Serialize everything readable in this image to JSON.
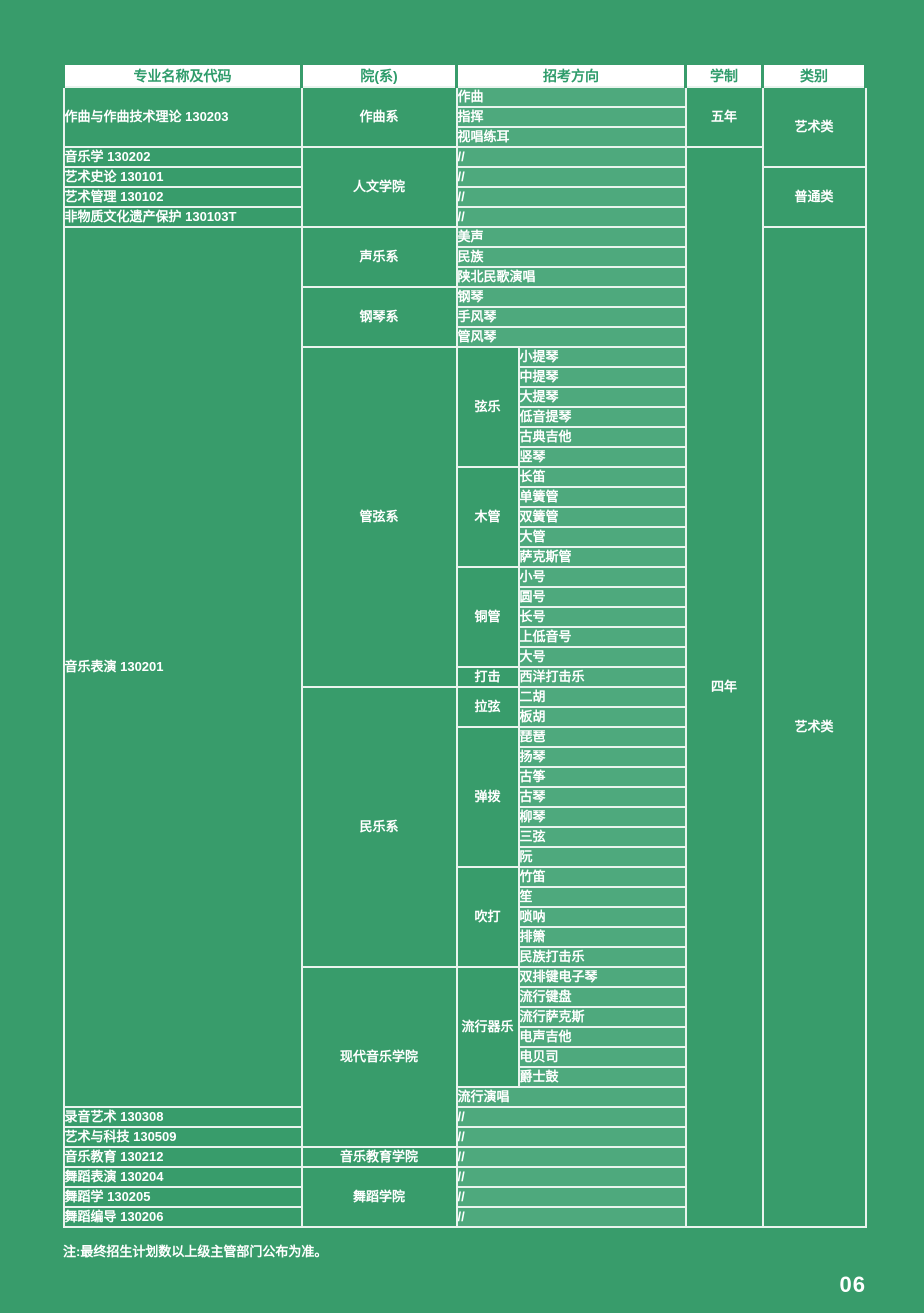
{
  "page": {
    "note": "注:最终招生计划数以上级主管部门公布为准。",
    "page_number": "06",
    "colors": {
      "page_background": "#389C6B",
      "direction_cell_fill": "#4EA97D",
      "grid_line": "#E9F4EE",
      "header_background": "#FFFFFF",
      "header_text": "#2F9C6B",
      "cell_text": "#FFFFFF"
    }
  },
  "table": {
    "headers": [
      "专业名称及代码",
      "院(系)",
      "招考方向",
      "学制",
      "类别"
    ],
    "rows": [
      [
        {
          "t": "作曲与作曲技术理论 130203",
          "k": "m",
          "rs": 3
        },
        {
          "t": "作曲系",
          "k": "d",
          "rs": 3
        },
        {
          "t": "作曲",
          "k": "f",
          "cs": 2
        },
        {
          "t": "五年",
          "k": "y",
          "rs": 3
        },
        {
          "t": "艺术类",
          "k": "c",
          "rs": 4
        }
      ],
      [
        {
          "t": "指挥",
          "k": "f",
          "cs": 2
        }
      ],
      [
        {
          "t": "视唱练耳",
          "k": "f",
          "cs": 2
        }
      ],
      [
        {
          "t": "音乐学 130202",
          "k": "m"
        },
        {
          "t": "人文学院",
          "k": "d",
          "rs": 4
        },
        {
          "t": "//",
          "k": "f",
          "cs": 2
        },
        {
          "t": "四年",
          "k": "y",
          "rs": 54
        }
      ],
      [
        {
          "t": "艺术史论 130101",
          "k": "m"
        },
        {
          "t": "//",
          "k": "f",
          "cs": 2
        },
        {
          "t": "普通类",
          "k": "c",
          "rs": 3
        }
      ],
      [
        {
          "t": "艺术管理 130102",
          "k": "m"
        },
        {
          "t": "//",
          "k": "f",
          "cs": 2
        }
      ],
      [
        {
          "t": "非物质文化遗产保护 130103T",
          "k": "m"
        },
        {
          "t": "//",
          "k": "f",
          "cs": 2
        }
      ],
      [
        {
          "t": "音乐表演 130201",
          "k": "m",
          "rs": 44
        },
        {
          "t": "声乐系",
          "k": "d",
          "rs": 3
        },
        {
          "t": "美声",
          "k": "f",
          "cs": 2
        },
        {
          "t": "艺术类",
          "k": "c",
          "rs": 50
        }
      ],
      [
        {
          "t": "民族",
          "k": "f",
          "cs": 2
        }
      ],
      [
        {
          "t": "陕北民歌演唱",
          "k": "f",
          "cs": 2
        }
      ],
      [
        {
          "t": "钢琴系",
          "k": "d",
          "rs": 3
        },
        {
          "t": "钢琴",
          "k": "f",
          "cs": 2
        }
      ],
      [
        {
          "t": "手风琴",
          "k": "f",
          "cs": 2
        }
      ],
      [
        {
          "t": "管风琴",
          "k": "f",
          "cs": 2
        }
      ],
      [
        {
          "t": "管弦系",
          "k": "d",
          "rs": 17
        },
        {
          "t": "弦乐",
          "k": "g",
          "rs": 6
        },
        {
          "t": "小提琴",
          "k": "i"
        }
      ],
      [
        {
          "t": "中提琴",
          "k": "i"
        }
      ],
      [
        {
          "t": "大提琴",
          "k": "i"
        }
      ],
      [
        {
          "t": "低音提琴",
          "k": "i"
        }
      ],
      [
        {
          "t": "古典吉他",
          "k": "i"
        }
      ],
      [
        {
          "t": "竖琴",
          "k": "i"
        }
      ],
      [
        {
          "t": "木管",
          "k": "g",
          "rs": 5
        },
        {
          "t": "长笛",
          "k": "i"
        }
      ],
      [
        {
          "t": "单簧管",
          "k": "i"
        }
      ],
      [
        {
          "t": "双簧管",
          "k": "i"
        }
      ],
      [
        {
          "t": "大管",
          "k": "i"
        }
      ],
      [
        {
          "t": "萨克斯管",
          "k": "i"
        }
      ],
      [
        {
          "t": "铜管",
          "k": "g",
          "rs": 5
        },
        {
          "t": "小号",
          "k": "i"
        }
      ],
      [
        {
          "t": "圆号",
          "k": "i"
        }
      ],
      [
        {
          "t": "长号",
          "k": "i"
        }
      ],
      [
        {
          "t": "上低音号",
          "k": "i"
        }
      ],
      [
        {
          "t": "大号",
          "k": "i"
        }
      ],
      [
        {
          "t": "打击",
          "k": "g"
        },
        {
          "t": "西洋打击乐",
          "k": "i"
        }
      ],
      [
        {
          "t": "民乐系",
          "k": "d",
          "rs": 14
        },
        {
          "t": "拉弦",
          "k": "g",
          "rs": 2
        },
        {
          "t": "二胡",
          "k": "i"
        }
      ],
      [
        {
          "t": "板胡",
          "k": "i"
        }
      ],
      [
        {
          "t": "弹拨",
          "k": "g",
          "rs": 7
        },
        {
          "t": "琵琶",
          "k": "i"
        }
      ],
      [
        {
          "t": "扬琴",
          "k": "i"
        }
      ],
      [
        {
          "t": "古筝",
          "k": "i"
        }
      ],
      [
        {
          "t": "古琴",
          "k": "i"
        }
      ],
      [
        {
          "t": "柳琴",
          "k": "i"
        }
      ],
      [
        {
          "t": "三弦",
          "k": "i"
        }
      ],
      [
        {
          "t": "阮",
          "k": "i"
        }
      ],
      [
        {
          "t": "吹打",
          "k": "g",
          "rs": 5
        },
        {
          "t": "竹笛",
          "k": "i"
        }
      ],
      [
        {
          "t": "笙",
          "k": "i"
        }
      ],
      [
        {
          "t": "唢呐",
          "k": "i"
        }
      ],
      [
        {
          "t": "排箫",
          "k": "i"
        }
      ],
      [
        {
          "t": "民族打击乐",
          "k": "i"
        }
      ],
      [
        {
          "t": "现代音乐学院",
          "k": "d",
          "rs": 9
        },
        {
          "t": "流行器乐",
          "k": "g",
          "rs": 6
        },
        {
          "t": "双排键电子琴",
          "k": "i"
        }
      ],
      [
        {
          "t": "流行键盘",
          "k": "i"
        }
      ],
      [
        {
          "t": "流行萨克斯",
          "k": "i"
        }
      ],
      [
        {
          "t": "电声吉他",
          "k": "i"
        }
      ],
      [
        {
          "t": "电贝司",
          "k": "i"
        }
      ],
      [
        {
          "t": "爵士鼓",
          "k": "i"
        }
      ],
      [
        {
          "t": "流行演唱",
          "k": "f",
          "cs": 2
        }
      ],
      [
        {
          "t": "录音艺术 130308",
          "k": "m"
        },
        {
          "t": "//",
          "k": "f",
          "cs": 2
        }
      ],
      [
        {
          "t": "艺术与科技 130509",
          "k": "m"
        },
        {
          "t": "//",
          "k": "f",
          "cs": 2
        }
      ],
      [
        {
          "t": "音乐教育 130212",
          "k": "m"
        },
        {
          "t": "音乐教育学院",
          "k": "d"
        },
        {
          "t": "//",
          "k": "f",
          "cs": 2
        }
      ],
      [
        {
          "t": "舞蹈表演 130204",
          "k": "m"
        },
        {
          "t": "舞蹈学院",
          "k": "d",
          "rs": 3
        },
        {
          "t": "//",
          "k": "f",
          "cs": 2
        }
      ],
      [
        {
          "t": "舞蹈学 130205",
          "k": "m"
        },
        {
          "t": "//",
          "k": "f",
          "cs": 2
        }
      ],
      [
        {
          "t": "舞蹈编导 130206",
          "k": "m"
        },
        {
          "t": "//",
          "k": "f",
          "cs": 2
        }
      ]
    ]
  }
}
